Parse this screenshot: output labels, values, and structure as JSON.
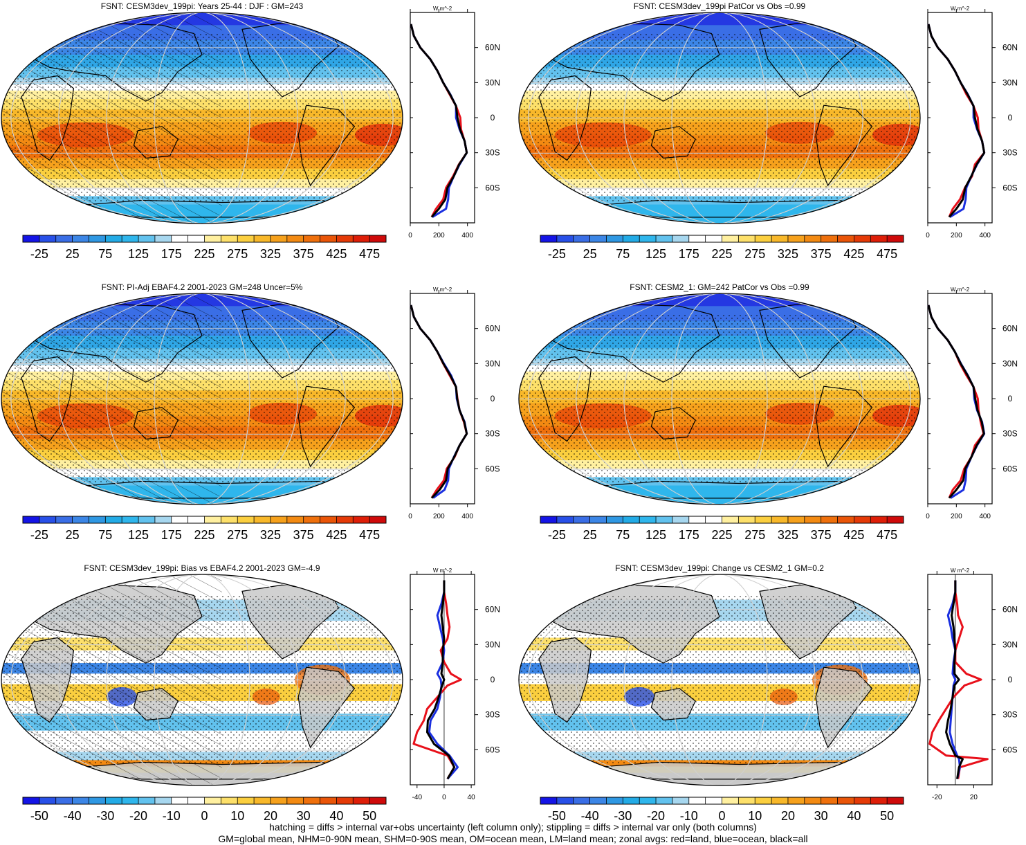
{
  "footer": {
    "line1": "hatching = diffs > internal var+obs uncertainty (left column only); stippling = diffs > internal var only (both columns)",
    "line2": "GM=global mean, NHM=0-90N mean, SHM=0-90S mean, OM=ocean mean, LM=land mean; zonal avgs: red=land, blue=ocean, black=all"
  },
  "colors": {
    "land": "#e8101a",
    "ocean": "#1a2fe0",
    "all": "#000000",
    "mask_land": "#c9c9c9"
  },
  "colorbar_palette": [
    "#1414e6",
    "#2850e8",
    "#3a6ee6",
    "#3c86e6",
    "#2f98e3",
    "#23abe6",
    "#2fb6ec",
    "#62c2ee",
    "#a7d7ef",
    "#ffffff",
    "#ffffff",
    "#fff0a0",
    "#fde06a",
    "#fbcf3f",
    "#f8b82a",
    "#f6a11c",
    "#f38a12",
    "#ef700c",
    "#ea5508",
    "#e53a07",
    "#de1e08",
    "#cf0a0a"
  ],
  "chart_data": [
    {
      "type": "map_with_zonal_profile",
      "title": "FSNT: CESM3dev_199pi: Years 25-44 : DJF : GM=243",
      "hatching": true,
      "stippling": true,
      "diff": false,
      "colorbar": {
        "labels": [
          "-25",
          "25",
          "75",
          "125",
          "175",
          "225",
          "275",
          "325",
          "375",
          "425",
          "475"
        ]
      },
      "zonal": {
        "unit": "W m^-2",
        "xlim": [
          0,
          450
        ],
        "xticks": [
          "0",
          "200",
          "400"
        ],
        "ylim": [
          -90,
          90
        ],
        "yticks": [
          {
            "lat": 60,
            "label": "60N"
          },
          {
            "lat": 30,
            "label": "30N"
          },
          {
            "lat": 0,
            "label": "0"
          },
          {
            "lat": -30,
            "label": "30S"
          },
          {
            "lat": -60,
            "label": "60S"
          }
        ],
        "lat": [
          80,
          70,
          60,
          50,
          40,
          30,
          20,
          10,
          0,
          -10,
          -20,
          -30,
          -40,
          -50,
          -60,
          -70,
          -78,
          -85
        ],
        "land": [
          5,
          25,
          70,
          140,
          190,
          230,
          275,
          320,
          350,
          355,
          380,
          395,
          340,
          300,
          250,
          230,
          180,
          150
        ],
        "ocean": [
          5,
          25,
          70,
          140,
          190,
          230,
          280,
          320,
          320,
          345,
          380,
          395,
          345,
          305,
          270,
          265,
          250,
          155
        ],
        "all": [
          5,
          25,
          70,
          140,
          190,
          230,
          278,
          320,
          330,
          348,
          380,
          395,
          342,
          305,
          260,
          245,
          200,
          150
        ]
      }
    },
    {
      "type": "map_with_zonal_profile",
      "title": "FSNT: CESM3dev_199pi PatCor vs Obs =0.99",
      "hatching": false,
      "stippling": true,
      "diff": false,
      "colorbar": {
        "labels": [
          "-25",
          "25",
          "75",
          "125",
          "175",
          "225",
          "275",
          "325",
          "375",
          "425",
          "475"
        ]
      },
      "zonal": {
        "unit": "W m^-2",
        "xlim": [
          0,
          450
        ],
        "xticks": [
          "0",
          "200",
          "400"
        ],
        "ylim": [
          -90,
          90
        ],
        "yticks": [
          {
            "lat": 60,
            "label": "60N"
          },
          {
            "lat": 30,
            "label": "30N"
          },
          {
            "lat": 0,
            "label": "0"
          },
          {
            "lat": -30,
            "label": "30S"
          },
          {
            "lat": -60,
            "label": "60S"
          }
        ],
        "lat": [
          80,
          70,
          60,
          50,
          40,
          30,
          20,
          10,
          0,
          -10,
          -20,
          -30,
          -40,
          -50,
          -60,
          -70,
          -78,
          -85
        ],
        "land": [
          5,
          25,
          70,
          140,
          190,
          230,
          270,
          320,
          350,
          355,
          380,
          395,
          330,
          310,
          260,
          225,
          175,
          150
        ],
        "ocean": [
          5,
          25,
          70,
          140,
          190,
          230,
          280,
          320,
          320,
          345,
          380,
          395,
          345,
          305,
          270,
          265,
          250,
          155
        ],
        "all": [
          5,
          25,
          70,
          140,
          190,
          230,
          278,
          320,
          330,
          348,
          380,
          395,
          342,
          305,
          262,
          245,
          200,
          150
        ]
      }
    },
    {
      "type": "map_with_zonal_profile",
      "title": "FSNT: PI-Adj EBAF4.2 2001-2023 GM=248 Uncer=5%",
      "hatching": true,
      "stippling": true,
      "diff": false,
      "colorbar": {
        "labels": [
          "-25",
          "25",
          "75",
          "125",
          "175",
          "225",
          "275",
          "325",
          "375",
          "425",
          "475"
        ]
      },
      "zonal": {
        "unit": "W m^-2",
        "xlim": [
          0,
          450
        ],
        "xticks": [
          "0",
          "200",
          "400"
        ],
        "ylim": [
          -90,
          90
        ],
        "yticks": [
          {
            "lat": 60,
            "label": "60N"
          },
          {
            "lat": 30,
            "label": "30N"
          },
          {
            "lat": 0,
            "label": "0"
          },
          {
            "lat": -30,
            "label": "30S"
          },
          {
            "lat": -60,
            "label": "60S"
          }
        ],
        "lat": [
          80,
          70,
          60,
          50,
          40,
          30,
          20,
          10,
          0,
          -10,
          -20,
          -30,
          -40,
          -50,
          -60,
          -70,
          -78,
          -85
        ],
        "land": [
          5,
          25,
          70,
          140,
          190,
          230,
          275,
          320,
          330,
          345,
          375,
          395,
          345,
          310,
          255,
          235,
          185,
          150
        ],
        "ocean": [
          5,
          25,
          70,
          140,
          190,
          235,
          285,
          320,
          325,
          345,
          380,
          395,
          345,
          305,
          270,
          265,
          240,
          160
        ],
        "all": [
          5,
          25,
          70,
          140,
          190,
          232,
          280,
          320,
          328,
          345,
          378,
          395,
          345,
          307,
          262,
          250,
          205,
          150
        ]
      }
    },
    {
      "type": "map_with_zonal_profile",
      "title": "FSNT: CESM2_1: GM=242 PatCor vs Obs =0.99",
      "hatching": false,
      "stippling": true,
      "diff": false,
      "colorbar": {
        "labels": [
          "-25",
          "25",
          "75",
          "125",
          "175",
          "225",
          "275",
          "325",
          "375",
          "425",
          "475"
        ]
      },
      "zonal": {
        "unit": "W m^-2",
        "xlim": [
          0,
          450
        ],
        "xticks": [
          "0",
          "200",
          "400"
        ],
        "ylim": [
          -90,
          90
        ],
        "yticks": [
          {
            "lat": 60,
            "label": "60N"
          },
          {
            "lat": 30,
            "label": "30N"
          },
          {
            "lat": 0,
            "label": "0"
          },
          {
            "lat": -30,
            "label": "30S"
          },
          {
            "lat": -60,
            "label": "60S"
          }
        ],
        "lat": [
          80,
          70,
          60,
          50,
          40,
          30,
          20,
          10,
          0,
          -10,
          -20,
          -30,
          -40,
          -50,
          -60,
          -70,
          -78,
          -85
        ],
        "land": [
          5,
          25,
          70,
          140,
          190,
          225,
          270,
          320,
          350,
          355,
          370,
          390,
          330,
          305,
          255,
          230,
          175,
          150
        ],
        "ocean": [
          5,
          25,
          70,
          140,
          190,
          232,
          280,
          320,
          325,
          345,
          380,
          395,
          345,
          305,
          270,
          265,
          250,
          160
        ],
        "all": [
          5,
          25,
          70,
          140,
          190,
          230,
          278,
          320,
          332,
          348,
          378,
          393,
          342,
          305,
          262,
          248,
          200,
          150
        ]
      }
    },
    {
      "type": "map_with_zonal_profile",
      "title": "FSNT: CESM3dev_199pi: Bias vs EBAF4.2 2001-2023 GM=-4.9",
      "hatching": true,
      "stippling": true,
      "diff": true,
      "colorbar": {
        "labels": [
          "-50",
          "-40",
          "-30",
          "-20",
          "-10",
          "0",
          "10",
          "20",
          "30",
          "40",
          "50"
        ]
      },
      "zonal": {
        "unit": "W m^-2",
        "xlim": [
          -50,
          45
        ],
        "xticks": [
          "-40",
          "0",
          "40"
        ],
        "ylim": [
          -90,
          90
        ],
        "yticks": [
          {
            "lat": 60,
            "label": "60N"
          },
          {
            "lat": 30,
            "label": "30N"
          },
          {
            "lat": 0,
            "label": "0"
          },
          {
            "lat": -30,
            "label": "30S"
          },
          {
            "lat": -60,
            "label": "60S"
          }
        ],
        "lat": [
          85,
          75,
          65,
          55,
          45,
          35,
          25,
          15,
          5,
          0,
          -5,
          -15,
          -25,
          -35,
          -45,
          -55,
          -65,
          -75,
          -85
        ],
        "land": [
          0,
          0,
          3,
          5,
          8,
          5,
          -5,
          0,
          10,
          25,
          5,
          -10,
          -25,
          -30,
          -40,
          -45,
          5,
          15,
          5
        ],
        "ocean": [
          0,
          0,
          -4,
          -10,
          -6,
          -2,
          0,
          -2,
          -10,
          -5,
          -4,
          -6,
          -10,
          -20,
          -22,
          -10,
          8,
          20,
          5
        ],
        "all": [
          0,
          0,
          -2,
          -4,
          -2,
          0,
          -2,
          -2,
          -4,
          0,
          -3,
          -8,
          -14,
          -24,
          -25,
          -15,
          7,
          15,
          5
        ]
      }
    },
    {
      "type": "map_with_zonal_profile",
      "title": "FSNT: CESM3dev_199pi: Change vs CESM2_1 GM=0.2",
      "hatching": false,
      "stippling": true,
      "diff": true,
      "colorbar": {
        "labels": [
          "-50",
          "-40",
          "-30",
          "-20",
          "-10",
          "0",
          "10",
          "20",
          "30",
          "40",
          "50"
        ]
      },
      "zonal": {
        "unit": "W m^-2",
        "xlim": [
          -30,
          40
        ],
        "xticks": [
          "-20",
          "20"
        ],
        "ylim": [
          -90,
          90
        ],
        "yticks": [
          {
            "lat": 60,
            "label": "60N"
          },
          {
            "lat": 30,
            "label": "30N"
          },
          {
            "lat": 0,
            "label": "0"
          },
          {
            "lat": -30,
            "label": "30S"
          },
          {
            "lat": -60,
            "label": "60S"
          }
        ],
        "lat": [
          85,
          75,
          65,
          55,
          45,
          35,
          25,
          15,
          5,
          0,
          -5,
          -15,
          -25,
          -35,
          -45,
          -55,
          -65,
          -68,
          -75,
          -85
        ],
        "land": [
          0,
          0,
          2,
          3,
          8,
          4,
          0,
          0,
          12,
          28,
          10,
          -2,
          -10,
          -18,
          -25,
          -28,
          -10,
          35,
          5,
          3
        ],
        "ocean": [
          0,
          0,
          -3,
          -8,
          -5,
          -3,
          0,
          -2,
          -3,
          0,
          -2,
          -3,
          -4,
          -5,
          -6,
          -3,
          2,
          4,
          5,
          2
        ],
        "all": [
          0,
          0,
          -2,
          -4,
          -2,
          -1,
          0,
          -1,
          -1,
          4,
          -1,
          -3,
          -5,
          -8,
          -10,
          -6,
          0,
          8,
          4,
          2
        ]
      }
    }
  ]
}
